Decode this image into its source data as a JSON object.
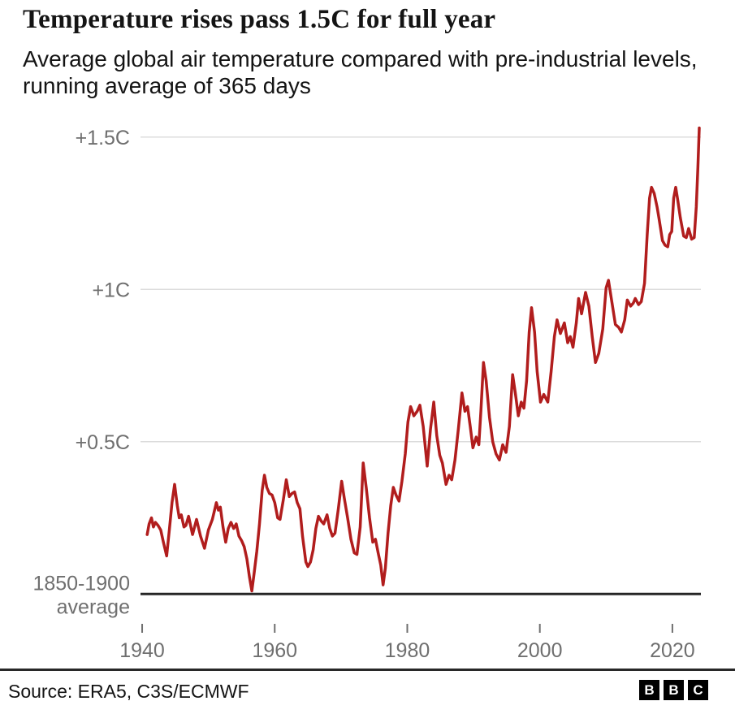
{
  "header": {
    "title": "Temperature rises pass 1.5C for full year",
    "subtitle": "Average global air temperature compared with pre-industrial levels, running average of 365 days"
  },
  "chart_data": {
    "type": "line",
    "title": "Temperature rises pass 1.5C for full year",
    "xlim": [
      1939.75,
      2024.3
    ],
    "ylim": [
      -0.09,
      1.55
    ],
    "grid": "horizontal",
    "legend": "none",
    "x_ticks": [
      1940,
      1960,
      1980,
      2000,
      2020
    ],
    "y_gridlines": [
      {
        "value": 1.5,
        "label": "+1.5C"
      },
      {
        "value": 1.0,
        "label": "+1C"
      },
      {
        "value": 0.5,
        "label": "+0.5C"
      }
    ],
    "baseline": {
      "value": 0,
      "label_lines": [
        "1850-1900",
        "average"
      ]
    },
    "series": [
      {
        "name": "Global air temperature anomaly vs 1850-1900, 365-day running average (C)",
        "color": "#b11d1d",
        "points": [
          [
            1940.75,
            0.195
          ],
          [
            1941.05,
            0.23
          ],
          [
            1941.4,
            0.25
          ],
          [
            1941.7,
            0.22
          ],
          [
            1942.0,
            0.235
          ],
          [
            1942.4,
            0.225
          ],
          [
            1942.8,
            0.21
          ],
          [
            1943.2,
            0.17
          ],
          [
            1943.7,
            0.125
          ],
          [
            1944.1,
            0.21
          ],
          [
            1944.5,
            0.3
          ],
          [
            1944.9,
            0.36
          ],
          [
            1945.3,
            0.29
          ],
          [
            1945.6,
            0.25
          ],
          [
            1945.9,
            0.26
          ],
          [
            1946.3,
            0.22
          ],
          [
            1946.6,
            0.225
          ],
          [
            1947.0,
            0.255
          ],
          [
            1947.6,
            0.195
          ],
          [
            1948.2,
            0.245
          ],
          [
            1948.8,
            0.19
          ],
          [
            1949.4,
            0.15
          ],
          [
            1950.0,
            0.21
          ],
          [
            1950.6,
            0.245
          ],
          [
            1951.2,
            0.3
          ],
          [
            1951.5,
            0.275
          ],
          [
            1951.8,
            0.285
          ],
          [
            1952.2,
            0.22
          ],
          [
            1952.6,
            0.17
          ],
          [
            1953.0,
            0.215
          ],
          [
            1953.4,
            0.235
          ],
          [
            1953.8,
            0.215
          ],
          [
            1954.2,
            0.23
          ],
          [
            1954.6,
            0.19
          ],
          [
            1955.0,
            0.175
          ],
          [
            1955.4,
            0.155
          ],
          [
            1955.8,
            0.115
          ],
          [
            1956.2,
            0.055
          ],
          [
            1956.55,
            0.01
          ],
          [
            1956.9,
            0.07
          ],
          [
            1957.3,
            0.14
          ],
          [
            1957.7,
            0.23
          ],
          [
            1958.1,
            0.34
          ],
          [
            1958.45,
            0.39
          ],
          [
            1958.8,
            0.35
          ],
          [
            1959.2,
            0.33
          ],
          [
            1959.6,
            0.325
          ],
          [
            1960.0,
            0.3
          ],
          [
            1960.45,
            0.25
          ],
          [
            1960.8,
            0.245
          ],
          [
            1961.3,
            0.31
          ],
          [
            1961.75,
            0.375
          ],
          [
            1962.2,
            0.32
          ],
          [
            1962.6,
            0.33
          ],
          [
            1963.0,
            0.335
          ],
          [
            1963.4,
            0.3
          ],
          [
            1963.8,
            0.28
          ],
          [
            1964.2,
            0.19
          ],
          [
            1964.7,
            0.105
          ],
          [
            1965.0,
            0.09
          ],
          [
            1965.4,
            0.105
          ],
          [
            1965.8,
            0.145
          ],
          [
            1966.2,
            0.215
          ],
          [
            1966.6,
            0.255
          ],
          [
            1967.0,
            0.24
          ],
          [
            1967.4,
            0.23
          ],
          [
            1967.9,
            0.26
          ],
          [
            1968.3,
            0.215
          ],
          [
            1968.7,
            0.19
          ],
          [
            1969.1,
            0.2
          ],
          [
            1969.6,
            0.28
          ],
          [
            1970.1,
            0.37
          ],
          [
            1970.5,
            0.315
          ],
          [
            1971.0,
            0.25
          ],
          [
            1971.5,
            0.18
          ],
          [
            1972.0,
            0.135
          ],
          [
            1972.4,
            0.13
          ],
          [
            1972.9,
            0.22
          ],
          [
            1973.35,
            0.43
          ],
          [
            1973.8,
            0.35
          ],
          [
            1974.3,
            0.25
          ],
          [
            1974.8,
            0.17
          ],
          [
            1975.2,
            0.18
          ],
          [
            1975.6,
            0.135
          ],
          [
            1976.0,
            0.095
          ],
          [
            1976.35,
            0.03
          ],
          [
            1976.7,
            0.085
          ],
          [
            1977.1,
            0.2
          ],
          [
            1977.5,
            0.29
          ],
          [
            1977.9,
            0.35
          ],
          [
            1978.3,
            0.325
          ],
          [
            1978.75,
            0.305
          ],
          [
            1979.2,
            0.37
          ],
          [
            1979.7,
            0.46
          ],
          [
            1980.1,
            0.565
          ],
          [
            1980.5,
            0.615
          ],
          [
            1981.0,
            0.585
          ],
          [
            1981.5,
            0.6
          ],
          [
            1981.9,
            0.62
          ],
          [
            1982.4,
            0.55
          ],
          [
            1983.0,
            0.42
          ],
          [
            1983.5,
            0.54
          ],
          [
            1984.0,
            0.63
          ],
          [
            1984.45,
            0.52
          ],
          [
            1984.9,
            0.455
          ],
          [
            1985.3,
            0.43
          ],
          [
            1985.85,
            0.36
          ],
          [
            1986.3,
            0.39
          ],
          [
            1986.7,
            0.375
          ],
          [
            1987.2,
            0.44
          ],
          [
            1987.7,
            0.54
          ],
          [
            1988.25,
            0.66
          ],
          [
            1988.7,
            0.6
          ],
          [
            1989.1,
            0.615
          ],
          [
            1989.5,
            0.55
          ],
          [
            1989.9,
            0.48
          ],
          [
            1990.4,
            0.515
          ],
          [
            1990.8,
            0.49
          ],
          [
            1991.1,
            0.6
          ],
          [
            1991.5,
            0.76
          ],
          [
            1991.9,
            0.7
          ],
          [
            1992.4,
            0.58
          ],
          [
            1992.9,
            0.5
          ],
          [
            1993.4,
            0.46
          ],
          [
            1993.9,
            0.44
          ],
          [
            1994.4,
            0.49
          ],
          [
            1994.9,
            0.465
          ],
          [
            1995.4,
            0.55
          ],
          [
            1995.9,
            0.72
          ],
          [
            1996.3,
            0.66
          ],
          [
            1996.75,
            0.585
          ],
          [
            1997.2,
            0.63
          ],
          [
            1997.6,
            0.61
          ],
          [
            1998.0,
            0.7
          ],
          [
            1998.4,
            0.86
          ],
          [
            1998.75,
            0.94
          ],
          [
            1999.2,
            0.86
          ],
          [
            1999.6,
            0.73
          ],
          [
            2000.1,
            0.63
          ],
          [
            2000.6,
            0.655
          ],
          [
            2001.2,
            0.63
          ],
          [
            2001.7,
            0.73
          ],
          [
            2002.2,
            0.845
          ],
          [
            2002.6,
            0.9
          ],
          [
            2003.1,
            0.855
          ],
          [
            2003.7,
            0.89
          ],
          [
            2004.2,
            0.825
          ],
          [
            2004.6,
            0.845
          ],
          [
            2005.0,
            0.81
          ],
          [
            2005.5,
            0.89
          ],
          [
            2005.85,
            0.97
          ],
          [
            2006.3,
            0.92
          ],
          [
            2006.9,
            0.99
          ],
          [
            2007.4,
            0.945
          ],
          [
            2007.9,
            0.845
          ],
          [
            2008.4,
            0.76
          ],
          [
            2008.9,
            0.79
          ],
          [
            2009.5,
            0.87
          ],
          [
            2010.0,
            1.005
          ],
          [
            2010.35,
            1.03
          ],
          [
            2010.9,
            0.955
          ],
          [
            2011.4,
            0.885
          ],
          [
            2011.9,
            0.875
          ],
          [
            2012.3,
            0.86
          ],
          [
            2012.8,
            0.9
          ],
          [
            2013.2,
            0.965
          ],
          [
            2013.7,
            0.945
          ],
          [
            2014.1,
            0.955
          ],
          [
            2014.4,
            0.97
          ],
          [
            2014.9,
            0.95
          ],
          [
            2015.3,
            0.96
          ],
          [
            2015.8,
            1.02
          ],
          [
            2016.2,
            1.18
          ],
          [
            2016.55,
            1.3
          ],
          [
            2016.85,
            1.335
          ],
          [
            2017.25,
            1.315
          ],
          [
            2017.7,
            1.27
          ],
          [
            2018.0,
            1.23
          ],
          [
            2018.5,
            1.16
          ],
          [
            2018.9,
            1.145
          ],
          [
            2019.3,
            1.14
          ],
          [
            2019.6,
            1.18
          ],
          [
            2019.9,
            1.19
          ],
          [
            2020.2,
            1.3
          ],
          [
            2020.5,
            1.335
          ],
          [
            2020.8,
            1.295
          ],
          [
            2021.2,
            1.235
          ],
          [
            2021.7,
            1.175
          ],
          [
            2022.1,
            1.17
          ],
          [
            2022.45,
            1.2
          ],
          [
            2022.9,
            1.165
          ],
          [
            2023.3,
            1.17
          ],
          [
            2023.6,
            1.27
          ],
          [
            2023.85,
            1.4
          ],
          [
            2024.05,
            1.53
          ]
        ]
      }
    ]
  },
  "footer": {
    "source": "Source: ERA5, C3S/ECMWF",
    "logo": [
      "B",
      "B",
      "C"
    ]
  },
  "colors": {
    "line": "#b11d1d",
    "gridline": "#dcdcdc",
    "axis_text": "#6f6f6f",
    "baseline": "#262626",
    "heading_text": "#141414"
  }
}
